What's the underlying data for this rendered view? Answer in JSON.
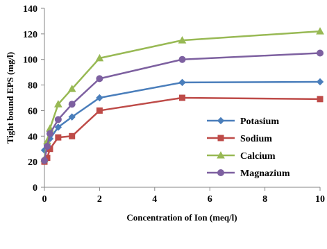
{
  "chart_data": {
    "type": "line",
    "title": "",
    "xlabel": "Concentration of  Ion (meq/l)",
    "ylabel": "Tight bound EPS (mg/l)",
    "xlim": [
      0,
      10
    ],
    "ylim": [
      0,
      140
    ],
    "x_ticks": [
      "0",
      "2",
      "4",
      "6",
      "8",
      "10"
    ],
    "y_ticks": [
      "0",
      "20",
      "40",
      "60",
      "80",
      "100",
      "120",
      "140"
    ],
    "grid": false,
    "legend_position": "bottom-right",
    "series": [
      {
        "name": "Potasium",
        "color": "#4a7ebb",
        "marker": "diamond",
        "x": [
          0,
          0.1,
          0.2,
          0.5,
          1,
          2,
          5,
          10
        ],
        "y": [
          29,
          33,
          38,
          47,
          55,
          70,
          82,
          82.5
        ]
      },
      {
        "name": "Sodium",
        "color": "#be4b48",
        "marker": "square",
        "x": [
          0,
          0.1,
          0.2,
          0.5,
          1,
          2,
          5,
          10
        ],
        "y": [
          20,
          23,
          30,
          39,
          40,
          60,
          70,
          69
        ]
      },
      {
        "name": "Calcium",
        "color": "#98b954",
        "marker": "triangle",
        "x": [
          0,
          0.1,
          0.2,
          0.5,
          1,
          2,
          5,
          10
        ],
        "y": [
          22,
          36,
          46,
          65,
          77,
          101,
          115,
          122
        ]
      },
      {
        "name": "Magnazium",
        "color": "#7d60a0",
        "marker": "circle",
        "x": [
          0,
          0.1,
          0.2,
          0.5,
          1,
          2,
          5,
          10
        ],
        "y": [
          21,
          32,
          42,
          53,
          65,
          85,
          100,
          105
        ]
      }
    ]
  }
}
